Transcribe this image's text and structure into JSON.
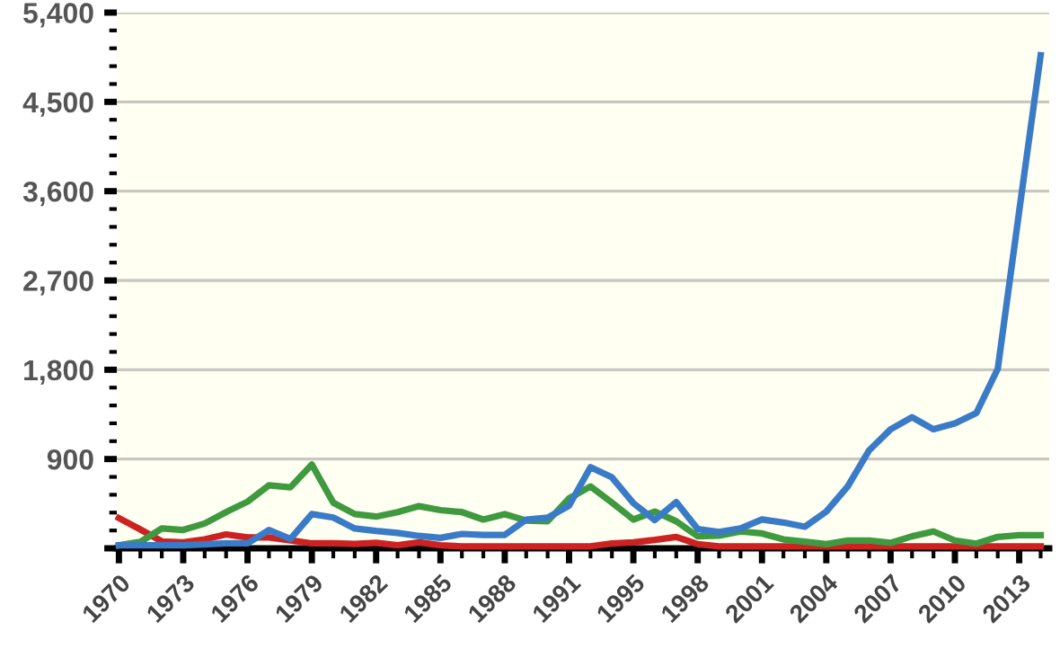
{
  "chart_data": {
    "type": "line",
    "categories": [
      "1970",
      null,
      null,
      "1973",
      null,
      null,
      "1976",
      null,
      null,
      "1979",
      null,
      null,
      "1982",
      null,
      null,
      "1985",
      null,
      null,
      "1988",
      null,
      null,
      "1991",
      null,
      null,
      "1995",
      null,
      null,
      "1998",
      null,
      null,
      "2001",
      null,
      null,
      "2004",
      null,
      null,
      "2007",
      null,
      null,
      "2010",
      null,
      null,
      "2013",
      null
    ],
    "series": [
      {
        "color": "#cc2222",
        "values": [
          305,
          190,
          70,
          60,
          90,
          140,
          110,
          110,
          80,
          50,
          50,
          45,
          55,
          30,
          60,
          30,
          20,
          20,
          20,
          20,
          20,
          20,
          20,
          48,
          60,
          85,
          115,
          42,
          20,
          20,
          20,
          20,
          20,
          20,
          20,
          20,
          20,
          20,
          20,
          20,
          20,
          20,
          20,
          20
        ]
      },
      {
        "color": "#3f9a3f",
        "values": [
          30,
          65,
          200,
          185,
          250,
          365,
          470,
          635,
          615,
          845,
          460,
          345,
          320,
          365,
          425,
          385,
          365,
          290,
          345,
          280,
          273,
          503,
          624,
          460,
          290,
          370,
          273,
          121,
          127,
          170,
          150,
          90,
          67,
          42,
          79,
          79,
          55,
          121,
          170,
          79,
          48,
          115,
          133,
          133
        ]
      },
      {
        "color": "#3a7bc8",
        "values": [
          30,
          30,
          30,
          30,
          40,
          50,
          50,
          185,
          95,
          345,
          310,
          200,
          175,
          155,
          125,
          105,
          145,
          135,
          135,
          290,
          309,
          430,
          818,
          715,
          455,
          285,
          467,
          194,
          164,
          200,
          291,
          260,
          218,
          370,
          624,
          988,
          1200,
          1321,
          1200,
          1260,
          1364,
          1810,
          3400,
          4970
        ]
      }
    ],
    "ylim": [
      0,
      5400
    ],
    "yticks": [
      {
        "value": 0,
        "label": null
      },
      {
        "value": 900,
        "label": "900"
      },
      {
        "value": 1800,
        "label": "1,800"
      },
      {
        "value": 2700,
        "label": "2,700"
      },
      {
        "value": 3600,
        "label": "3,600"
      },
      {
        "value": 4500,
        "label": "4,500"
      },
      {
        "value": 5400,
        "label": "5,400"
      }
    ],
    "grid": "y",
    "legend": false,
    "marker": "none",
    "line_style": "solid"
  }
}
